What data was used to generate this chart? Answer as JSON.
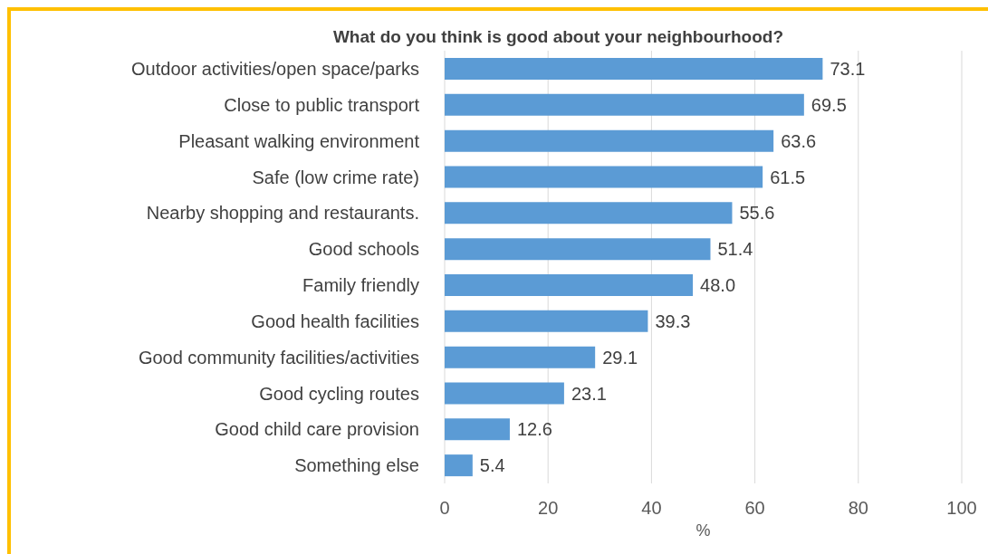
{
  "chart_data": {
    "type": "bar",
    "orientation": "horizontal",
    "title": "What do you think is good about your neighbourhood?",
    "xlabel": "%",
    "categories": [
      "Outdoor activities/open space/parks",
      "Close to public transport",
      "Pleasant walking environment",
      "Safe (low crime rate)",
      "Nearby shopping and restaurants.",
      "Good schools",
      "Family friendly",
      "Good health facilities",
      "Good community facilities/activities",
      "Good cycling routes",
      "Good child care provision",
      "Something else"
    ],
    "values": [
      73.1,
      69.5,
      63.6,
      61.5,
      55.6,
      51.4,
      48.0,
      39.3,
      29.1,
      23.1,
      12.6,
      5.4
    ],
    "value_labels": [
      "73.1",
      "69.5",
      "63.6",
      "61.5",
      "55.6",
      "51.4",
      "48.0",
      "39.3",
      "29.1",
      "23.1",
      "12.6",
      "5.4"
    ],
    "color": "#5b9bd5",
    "xlim": [
      0,
      100
    ],
    "xticks": [
      0,
      20,
      40,
      60,
      80,
      100
    ],
    "grid": "x"
  }
}
